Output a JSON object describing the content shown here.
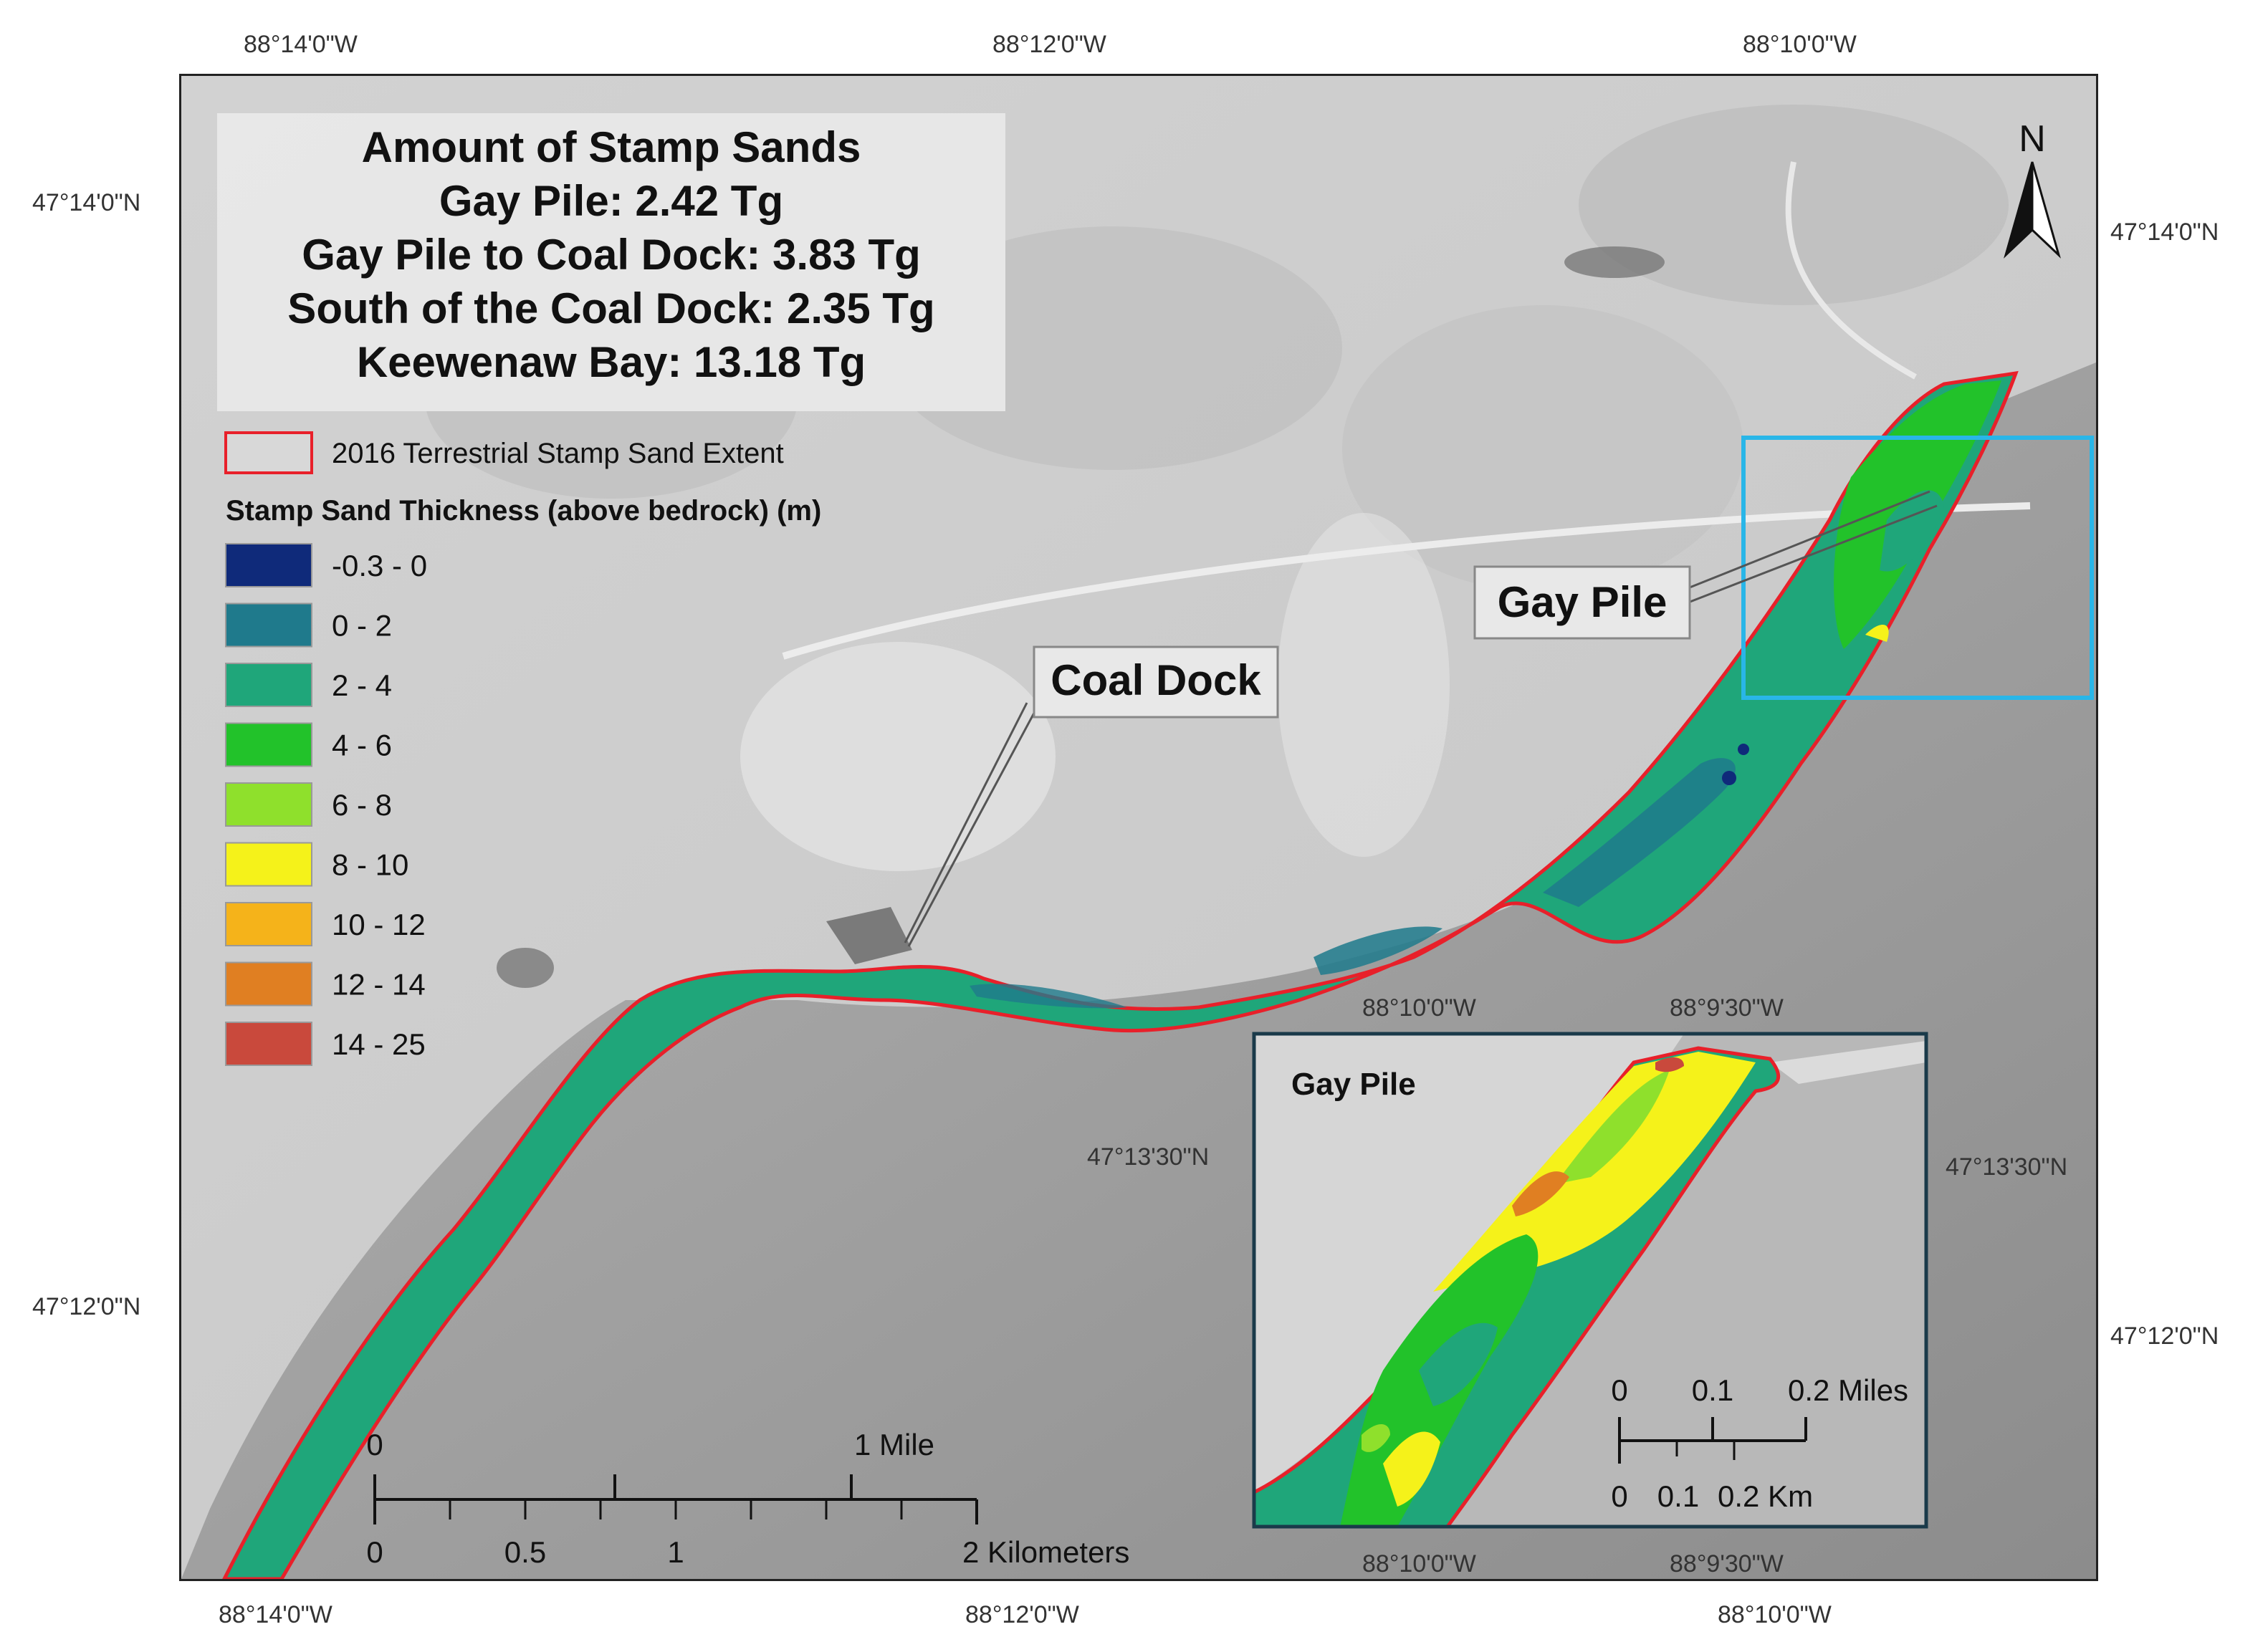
{
  "figure": {
    "graticule": {
      "top": [
        "88°14'0\"W",
        "88°12'0\"W",
        "88°10'0\"W"
      ],
      "bottom": [
        "88°14'0\"W",
        "88°12'0\"W",
        "88°10'0\"W"
      ],
      "left": [
        "47°14'0\"N",
        "47°12'0\"N"
      ],
      "right": [
        "47°14'0\"N",
        "47°12'0\"N"
      ]
    },
    "summary": {
      "title": "Amount of Stamp Sands",
      "lines": [
        "Gay Pile: 2.42 Tg",
        "Gay Pile to Coal Dock: 3.83 Tg",
        "South of the Coal Dock: 2.35 Tg",
        "Keewenaw Bay: 13.18 Tg"
      ]
    },
    "legend": {
      "extent_label": "2016 Terrestrial Stamp Sand Extent",
      "extent_color": "#e8202a",
      "thickness_title": "Stamp Sand Thickness (above bedrock) (m)",
      "classes": [
        {
          "label": "-0.3 - 0",
          "color": "#0f2a7a"
        },
        {
          "label": "0 - 2",
          "color": "#1f7a8c"
        },
        {
          "label": "2 - 4",
          "color": "#1fa67a"
        },
        {
          "label": "4 - 6",
          "color": "#22c22a"
        },
        {
          "label": "6 - 8",
          "color": "#8fe02c"
        },
        {
          "label": "8 - 10",
          "color": "#f5f21a"
        },
        {
          "label": "10 - 12",
          "color": "#f5b31a"
        },
        {
          "label": "12 - 14",
          "color": "#e07f22"
        },
        {
          "label": "14 - 25",
          "color": "#c9493c"
        }
      ]
    },
    "north_arrow": "N",
    "callouts": {
      "coal_dock": "Coal Dock",
      "gay_pile": "Gay Pile"
    },
    "scalebar": {
      "mile_labels": [
        "0",
        "1 Mile"
      ],
      "km_labels": [
        "0",
        "0.5",
        "1",
        "2 Kilometers"
      ]
    },
    "inset": {
      "title": "Gay Pile",
      "frame_color": "#29b6e8",
      "top_labels": [
        "88°10'0\"W",
        "88°9'30\"W"
      ],
      "bottom_labels": [
        "88°10'0\"W",
        "88°9'30\"W"
      ],
      "left_label": "47°13'30\"N",
      "right_label": "47°13'30\"N",
      "scalebar": {
        "mile_labels": [
          "0",
          "0.1",
          "0.2 Miles"
        ],
        "km_labels": [
          "0",
          "0.1",
          "0.2 Km"
        ]
      }
    }
  }
}
